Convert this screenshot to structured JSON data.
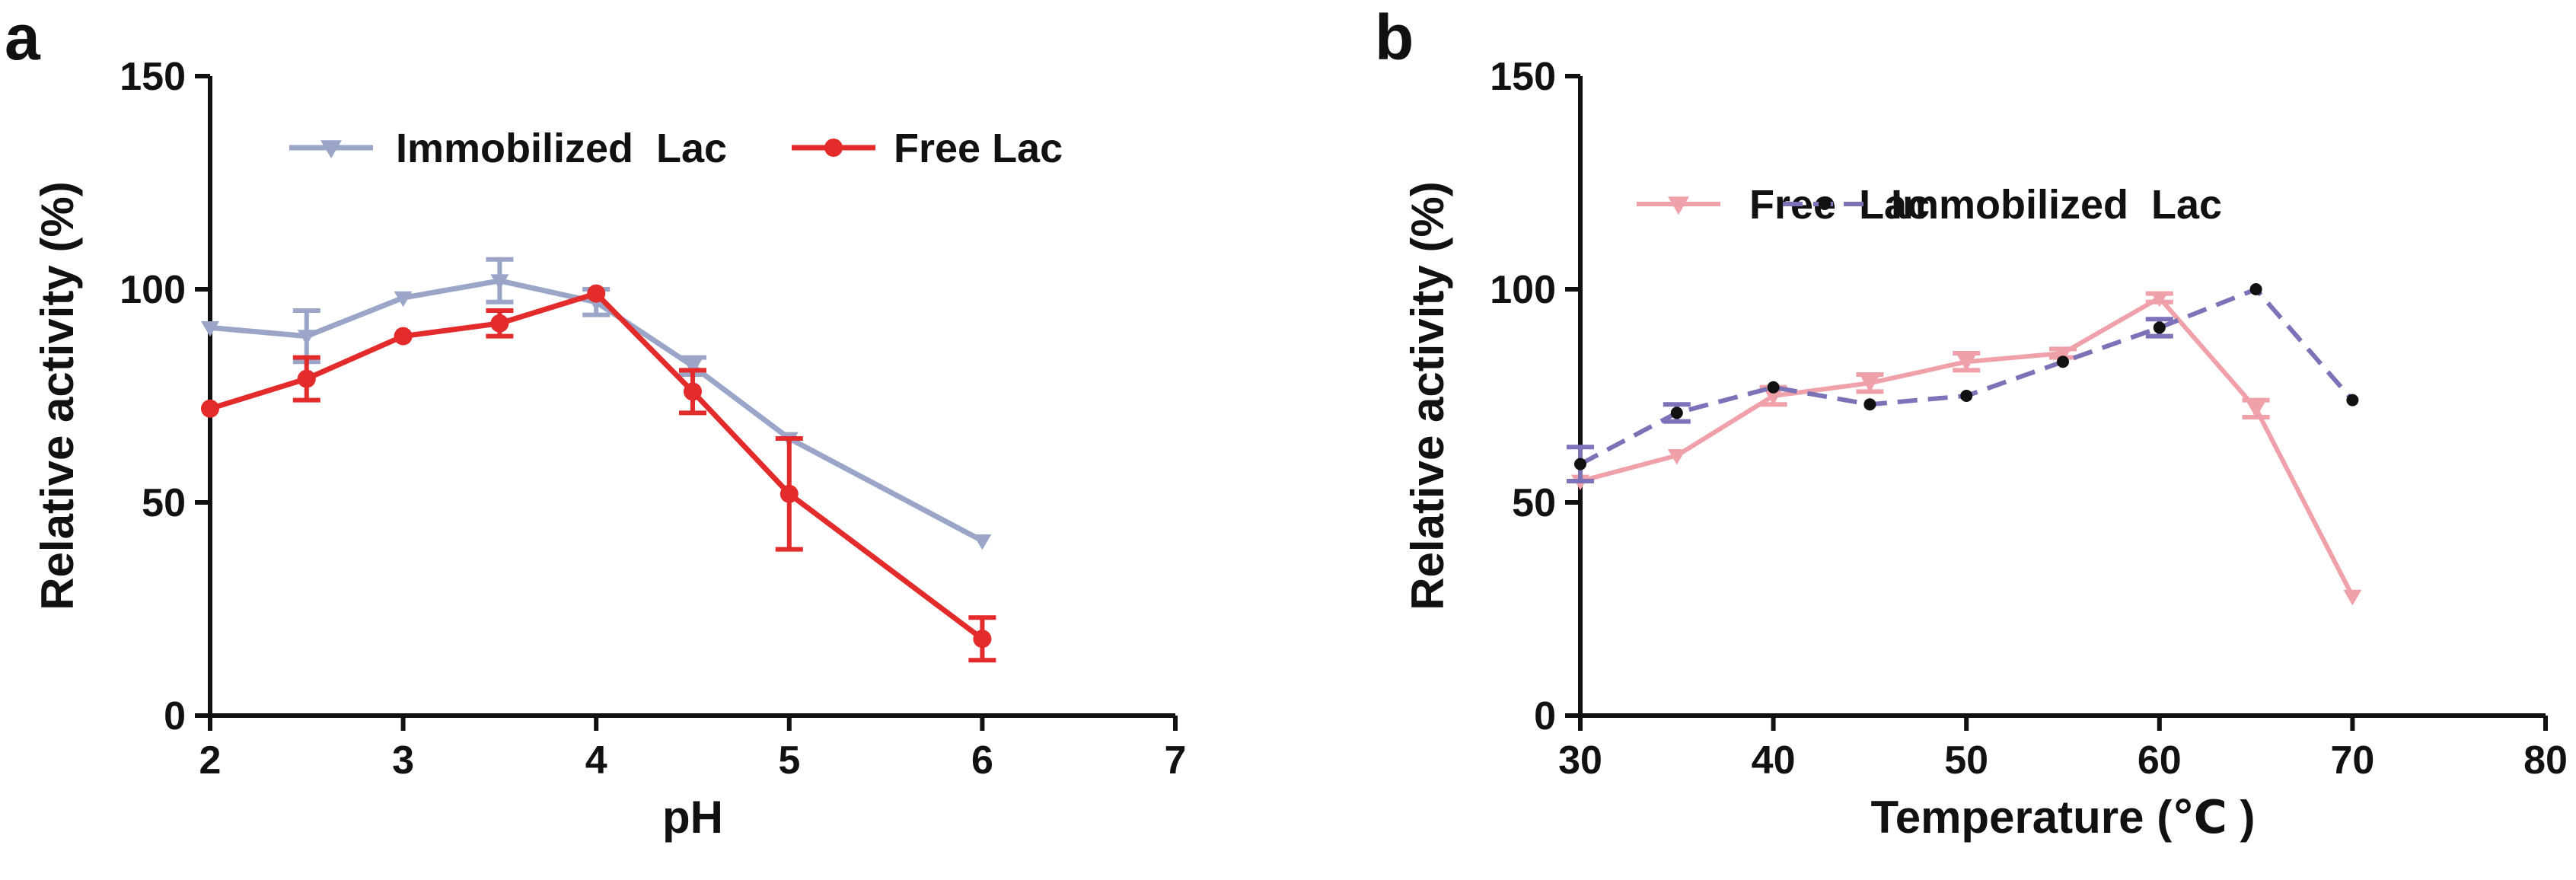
{
  "chart_data": [
    {
      "panel_label": "a",
      "type": "line",
      "xlabel": "pH",
      "ylabel": "Relative activity (%)",
      "xlim": [
        2,
        7
      ],
      "ylim": [
        0,
        150
      ],
      "xticks": [
        2,
        3,
        4,
        5,
        6,
        7
      ],
      "yticks": [
        0,
        50,
        100,
        150
      ],
      "xtick_labels": [
        "2",
        "3",
        "4",
        "5",
        "6",
        "7"
      ],
      "ytick_labels": [
        "0",
        "50",
        "100",
        "150"
      ],
      "legend_position": "top-left",
      "series": [
        {
          "name": "Immobilized  Lac",
          "color": "#9aa5c7",
          "marker": "triangle-down",
          "line_style": "solid",
          "x": [
            2,
            2.5,
            3,
            3.5,
            4,
            4.5,
            5,
            6
          ],
          "y": [
            91,
            89,
            98,
            102,
            97,
            82,
            65,
            41
          ],
          "error": [
            0,
            6,
            0,
            5,
            3,
            2,
            0,
            0
          ]
        },
        {
          "name": "Free Lac",
          "color": "#e32b2b",
          "marker": "circle",
          "line_style": "solid",
          "x": [
            2,
            2.5,
            3,
            3.5,
            4,
            4.5,
            5,
            6
          ],
          "y": [
            72,
            79,
            89,
            92,
            99,
            76,
            52,
            18
          ],
          "error": [
            0,
            5,
            0,
            3,
            0,
            5,
            13,
            5
          ]
        }
      ]
    },
    {
      "panel_label": "b",
      "type": "line",
      "xlabel": "Temperature (℃ )",
      "ylabel": "Relative activity (%)",
      "xlim": [
        30,
        80
      ],
      "ylim": [
        0,
        150
      ],
      "xticks": [
        30,
        40,
        50,
        60,
        70,
        80
      ],
      "yticks": [
        0,
        50,
        100,
        150
      ],
      "xtick_labels": [
        "30",
        "40",
        "50",
        "60",
        "70",
        "80"
      ],
      "ytick_labels": [
        "0",
        "50",
        "100",
        "150"
      ],
      "legend_position": "top-left",
      "series": [
        {
          "name": "Free  Lac",
          "color": "#f0a0a8",
          "marker": "triangle-down",
          "line_style": "solid",
          "x": [
            30,
            35,
            40,
            45,
            50,
            55,
            60,
            65,
            70
          ],
          "y": [
            55,
            61,
            75,
            78,
            83,
            85,
            98,
            72,
            28
          ],
          "error": [
            0,
            0,
            2,
            2,
            2,
            1,
            1,
            2,
            0
          ]
        },
        {
          "name": "Immobilized  Lac",
          "color": "#7b72b8",
          "marker": "circle",
          "line_style": "dashed",
          "x": [
            30,
            35,
            40,
            45,
            50,
            55,
            60,
            65,
            70
          ],
          "y": [
            59,
            71,
            77,
            73,
            75,
            83,
            91,
            100,
            74
          ],
          "error": [
            4,
            2,
            0,
            0,
            0,
            0,
            2,
            0,
            0
          ]
        }
      ]
    }
  ]
}
